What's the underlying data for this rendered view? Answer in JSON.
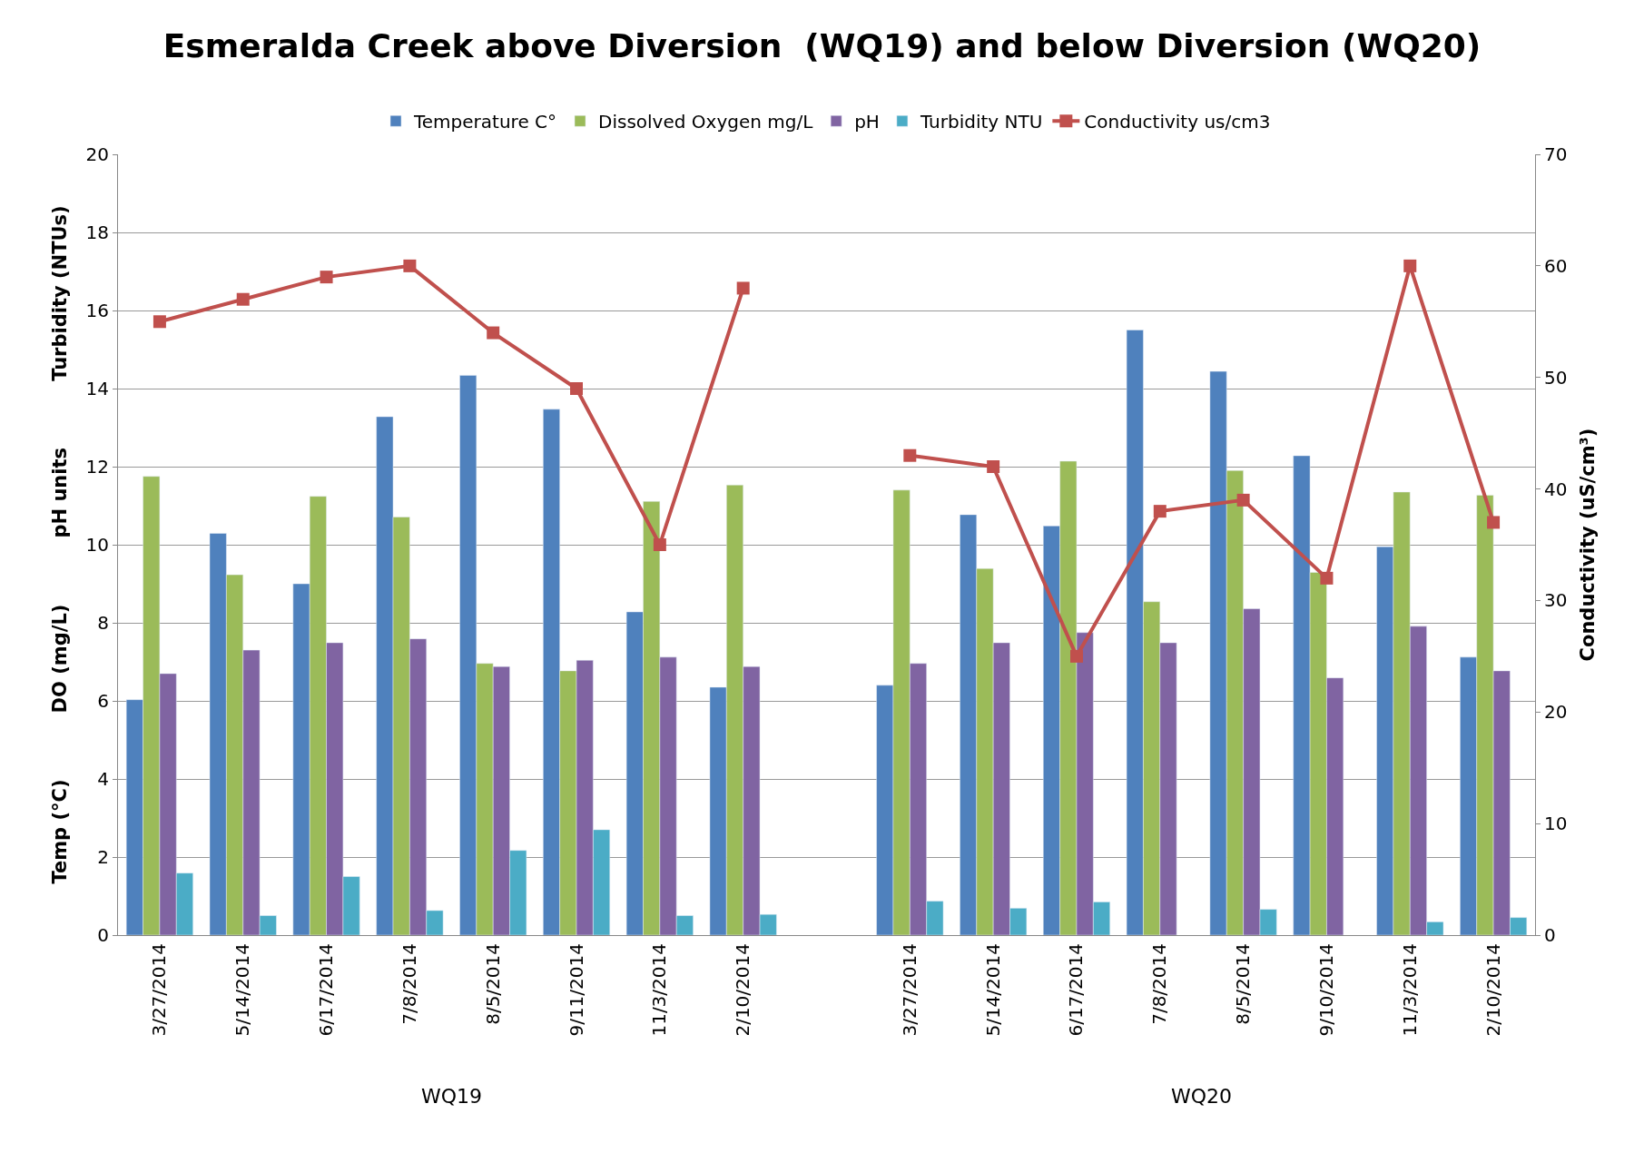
{
  "chart_data": {
    "type": "bar",
    "title": "Esmeralda Creek above Diversion  (WQ19) and below Diversion (WQ20)",
    "ylabel": "Temp (°C)          DO (mg/L)          pH units          Turbidity (NTUs)",
    "y2label": "Conductivity (uS/cm³)",
    "categories": [
      "3/27/2014",
      "5/14/2014",
      "6/17/2014",
      "7/8/2014",
      "8/5/2014",
      "9/11/2014",
      "11/3/2014",
      "2/10/2014",
      null,
      "3/27/2014",
      "5/14/2014",
      "6/17/2014",
      "7/8/2014",
      "8/5/2014",
      "9/10/2014",
      "11/3/2014",
      "2/10/2014"
    ],
    "series": [
      {
        "name": "Temperature C°",
        "color": "#4f81bd",
        "values": [
          6.03,
          10.29,
          9.0,
          13.28,
          14.34,
          13.47,
          8.28,
          6.35,
          null,
          6.4,
          10.77,
          10.48,
          15.5,
          14.44,
          12.28,
          9.95,
          7.12
        ]
      },
      {
        "name": "Dissolved Oxygen mg/L",
        "color": "#9bbb59",
        "values": [
          11.75,
          9.23,
          11.24,
          10.71,
          6.96,
          6.77,
          11.11,
          11.53,
          null,
          11.4,
          9.39,
          12.14,
          8.54,
          11.9,
          9.29,
          11.35,
          11.27
        ]
      },
      {
        "name": "pH",
        "color": "#8064a2",
        "values": [
          6.7,
          7.3,
          7.49,
          7.59,
          6.88,
          7.04,
          7.12,
          6.88,
          null,
          6.96,
          7.49,
          7.75,
          7.49,
          8.36,
          6.59,
          7.91,
          6.77
        ]
      },
      {
        "name": "Turbidity NTU",
        "color": "#4bacc6",
        "values": [
          1.59,
          0.5,
          1.5,
          0.63,
          2.17,
          2.7,
          0.5,
          0.53,
          null,
          0.87,
          0.69,
          0.85,
          null,
          0.66,
          null,
          0.34,
          0.45
        ]
      },
      {
        "name": "Conductivity us/cm3",
        "color": "#c0504d",
        "type": "line",
        "axis": "y2",
        "marker": "square",
        "values": [
          55,
          57,
          59,
          60,
          54,
          49,
          35,
          58,
          null,
          43,
          42,
          25,
          38,
          39,
          32,
          60,
          37
        ]
      }
    ],
    "annotations": [
      "WQ19",
      "WQ20"
    ],
    "ylim": [
      0,
      20
    ],
    "yticks": [
      0,
      2,
      4,
      6,
      8,
      10,
      12,
      14,
      16,
      18,
      20
    ],
    "y2lim": [
      0,
      70
    ],
    "y2ticks": [
      0,
      10,
      20,
      30,
      40,
      50,
      60,
      70
    ],
    "grid": "y",
    "legend": "top"
  }
}
